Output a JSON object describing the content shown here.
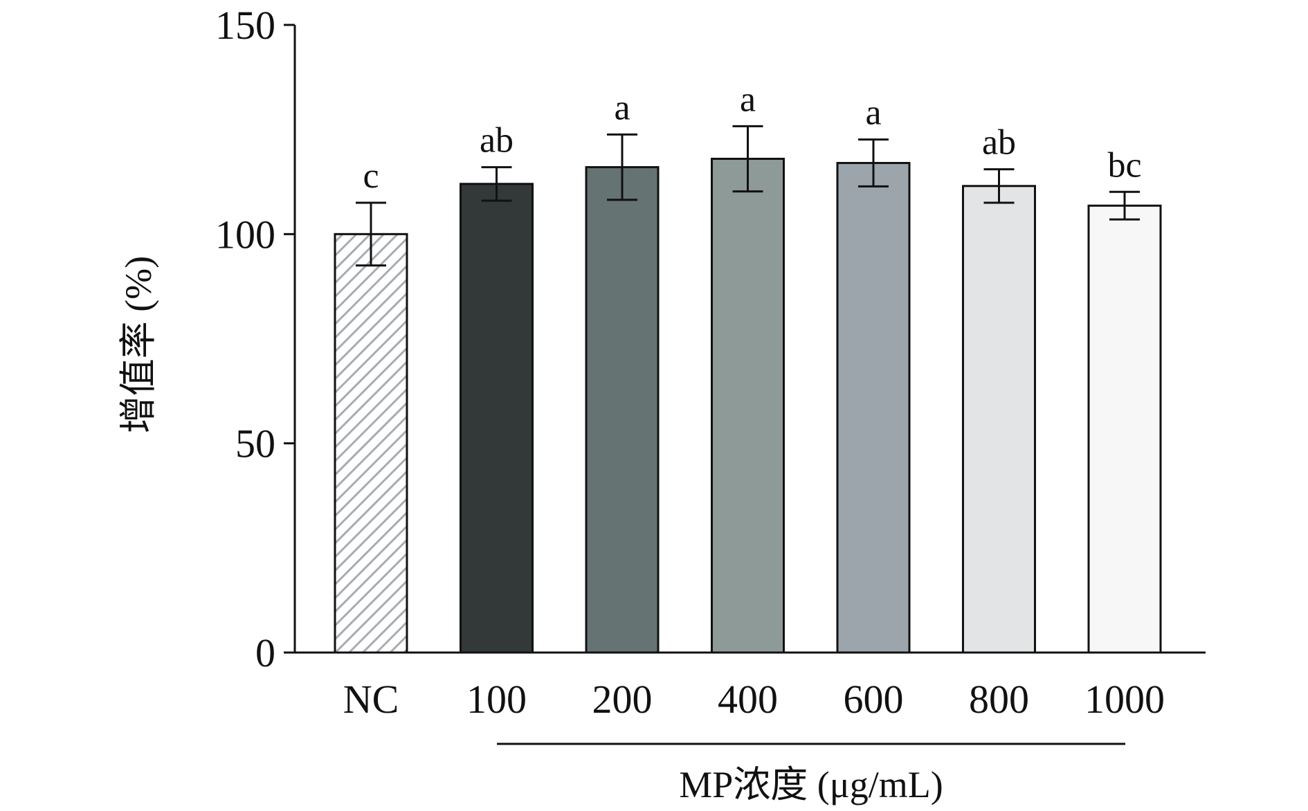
{
  "chart_data": {
    "type": "bar",
    "title": "",
    "xlabel": "MP浓度 (μg/mL)",
    "ylabel": "增值率 (%)",
    "ylim": [
      0,
      150
    ],
    "yticks": [
      "0",
      "50",
      "100",
      "150"
    ],
    "categories": [
      "NC",
      "100",
      "200",
      "400",
      "600",
      "800",
      "1000"
    ],
    "values": [
      100,
      112,
      116,
      118,
      117,
      111.5,
      106.8
    ],
    "errors": [
      7.5,
      4.0,
      7.8,
      7.8,
      5.6,
      4.0,
      3.3
    ],
    "significance": [
      "c",
      "ab",
      "a",
      "a",
      "a",
      "ab",
      "bc"
    ],
    "colors": [
      "#ffffff",
      "#333839",
      "#667373",
      "#8e9a98",
      "#9ca5ab",
      "#e2e4e5",
      "#f6f7f6"
    ],
    "patterns": [
      "hatched",
      "solid",
      "solid",
      "solid",
      "solid",
      "solid",
      "solid"
    ],
    "hatch_color": "#a8acb0"
  }
}
